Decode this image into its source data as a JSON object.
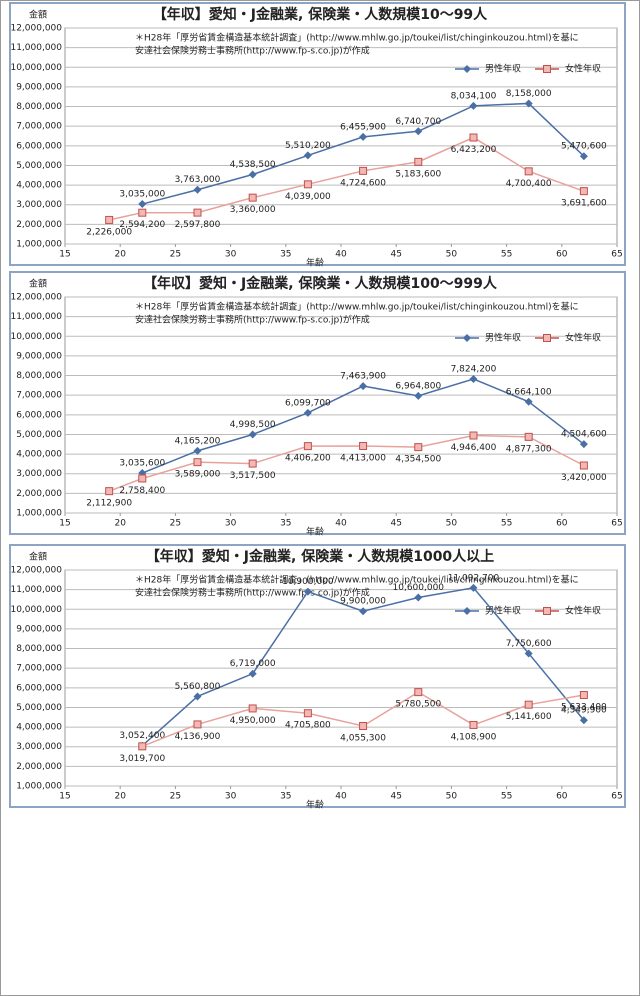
{
  "chart_data": [
    {
      "type": "line",
      "title": "【年収】愛知・J金融業, 保険業・人数規模10～99人",
      "y_label": "金額",
      "x_label": "年齢",
      "note": [
        "＊H28年「厚労省賃金構造基本統計調査」(http://www.mhlw.go.jp/toukei/list/chinginkouzou.html)を基に",
        "安達社会保険労務士事務所(http://www.fp-s.co.jp)が作成"
      ],
      "xlim": [
        15,
        65
      ],
      "xticks": [
        15,
        20,
        25,
        30,
        35,
        40,
        45,
        50,
        55,
        60,
        65
      ],
      "ylim": [
        1000000,
        12000000
      ],
      "yticks": [
        {
          "value": 1000000,
          "label": "1,000,000"
        },
        {
          "value": 2000000,
          "label": "2,000,000"
        },
        {
          "value": 3000000,
          "label": "3,000,000"
        },
        {
          "value": 4000000,
          "label": "4,000,000"
        },
        {
          "value": 5000000,
          "label": "5,000,000"
        },
        {
          "value": 6000000,
          "label": "6,000,000"
        },
        {
          "value": 7000000,
          "label": "7,000,000"
        },
        {
          "value": 8000000,
          "label": "8,000,000"
        },
        {
          "value": 9000000,
          "label": "9,000,000"
        },
        {
          "value": 10000000,
          "label": "10,000,000"
        },
        {
          "value": 11000000,
          "label": "11,000,000"
        },
        {
          "value": 12000000,
          "label": "12,000,000"
        }
      ],
      "grid": true,
      "legend": "upper right",
      "series": [
        {
          "name": "男性年収",
          "color": "#4a6fa5",
          "marker": "diamond",
          "x": [
            22,
            27,
            32,
            37,
            42,
            47,
            52,
            57,
            62
          ],
          "values": [
            3035000,
            3763000,
            4538500,
            5510200,
            6455900,
            6740700,
            8034100,
            8158000,
            5470600
          ],
          "value_labels": [
            "3,035,000",
            "3,763,000",
            "4,538,500",
            "5,510,200",
            "6,455,900",
            "6,740,700",
            "8,034,100",
            "8,158,000",
            "5,470,600"
          ]
        },
        {
          "name": "女性年収",
          "color": "#c0504d",
          "marker": "square",
          "x": [
            19,
            22,
            27,
            32,
            37,
            42,
            47,
            52,
            57,
            62
          ],
          "values": [
            2226000,
            2594200,
            2597800,
            3360000,
            4039000,
            4724600,
            5183600,
            6423200,
            4700400,
            3691600
          ],
          "value_labels": [
            "2,226,000",
            "2,594,200",
            "2,597,800",
            "3,360,000",
            "4,039,000",
            "4,724,600",
            "5,183,600",
            "6,423,200",
            "4,700,400",
            "3,691,600"
          ]
        }
      ]
    },
    {
      "type": "line",
      "title": "【年収】愛知・J金融業, 保険業・人数規模100～999人",
      "y_label": "金額",
      "x_label": "年齢",
      "note": [
        "＊H28年「厚労省賃金構造基本統計調査」(http://www.mhlw.go.jp/toukei/list/chinginkouzou.html)を基に",
        "安達社会保険労務士事務所(http://www.fp-s.co.jp)が作成"
      ],
      "xlim": [
        15,
        65
      ],
      "xticks": [
        15,
        20,
        25,
        30,
        35,
        40,
        45,
        50,
        55,
        60,
        65
      ],
      "ylim": [
        1000000,
        12000000
      ],
      "yticks": [
        {
          "value": 1000000,
          "label": "1,000,000"
        },
        {
          "value": 2000000,
          "label": "2,000,000"
        },
        {
          "value": 3000000,
          "label": "3,000,000"
        },
        {
          "value": 4000000,
          "label": "4,000,000"
        },
        {
          "value": 5000000,
          "label": "5,000,000"
        },
        {
          "value": 6000000,
          "label": "6,000,000"
        },
        {
          "value": 7000000,
          "label": "7,000,000"
        },
        {
          "value": 8000000,
          "label": "8,000,000"
        },
        {
          "value": 9000000,
          "label": "9,000,000"
        },
        {
          "value": 10000000,
          "label": "10,000,000"
        },
        {
          "value": 11000000,
          "label": "11,000,000"
        },
        {
          "value": 12000000,
          "label": "12,000,000"
        }
      ],
      "grid": true,
      "legend": "upper right",
      "series": [
        {
          "name": "男性年収",
          "color": "#4a6fa5",
          "marker": "diamond",
          "x": [
            22,
            27,
            32,
            37,
            42,
            47,
            52,
            57,
            62
          ],
          "values": [
            3035600,
            4165200,
            4998500,
            6099700,
            7463900,
            6964800,
            7824200,
            6664100,
            4504600
          ],
          "value_labels": [
            "3,035,600",
            "4,165,200",
            "4,998,500",
            "6,099,700",
            "7,463,900",
            "6,964,800",
            "7,824,200",
            "6,664,100",
            "4,504,600"
          ]
        },
        {
          "name": "女性年収",
          "color": "#c0504d",
          "marker": "square",
          "x": [
            19,
            22,
            27,
            32,
            37,
            42,
            47,
            52,
            57,
            62
          ],
          "values": [
            2112900,
            2758400,
            3589000,
            3517500,
            4406200,
            4413000,
            4354500,
            4946400,
            4877300,
            3420000
          ],
          "value_labels": [
            "2,112,900",
            "2,758,400",
            "3,589,000",
            "3,517,500",
            "4,406,200",
            "4,413,000",
            "4,354,500",
            "4,946,400",
            "4,877,300",
            "3,420,000"
          ]
        }
      ]
    },
    {
      "type": "line",
      "title": "【年収】愛知・J金融業, 保険業・人数規模1000人以上",
      "y_label": "金額",
      "x_label": "年齢",
      "note": [
        "＊H28年「厚労省賃金構造基本統計調査」(http://www.mhlw.go.jp/toukei/list/chinginkouzou.html)を基に",
        "安達社会保険労務士事務所(http://www.fp-s.co.jp)が作成"
      ],
      "xlim": [
        15,
        65
      ],
      "xticks": [
        15,
        20,
        25,
        30,
        35,
        40,
        45,
        50,
        55,
        60,
        65
      ],
      "ylim": [
        1000000,
        12000000
      ],
      "yticks": [
        {
          "value": 1000000,
          "label": "1,000,000"
        },
        {
          "value": 2000000,
          "label": "2,000,000"
        },
        {
          "value": 3000000,
          "label": "3,000,000"
        },
        {
          "value": 4000000,
          "label": "4,000,000"
        },
        {
          "value": 5000000,
          "label": "5,000,000"
        },
        {
          "value": 6000000,
          "label": "6,000,000"
        },
        {
          "value": 7000000,
          "label": "7,000,000"
        },
        {
          "value": 8000000,
          "label": "8,000,000"
        },
        {
          "value": 9000000,
          "label": "9,000,000"
        },
        {
          "value": 10000000,
          "label": "10,000,000"
        },
        {
          "value": 11000000,
          "label": "11,000,000"
        },
        {
          "value": 12000000,
          "label": "12,000,000"
        }
      ],
      "grid": true,
      "legend": "upper right",
      "series": [
        {
          "name": "男性年収",
          "color": "#4a6fa5",
          "marker": "diamond",
          "x": [
            22,
            27,
            32,
            37,
            42,
            47,
            52,
            57,
            62
          ],
          "values": [
            3052400,
            5560800,
            6719000,
            10900000,
            9900000,
            10600000,
            11092700,
            7750600,
            4349900
          ],
          "value_labels": [
            "3,052,400",
            "5,560,800",
            "6,719,000",
            "10,900,000",
            "9,900,000",
            "10,600,000",
            "11,092,700",
            "7,750,600",
            "4,349,900"
          ]
        },
        {
          "name": "女性年収",
          "color": "#c0504d",
          "marker": "square",
          "x": [
            22,
            27,
            32,
            37,
            42,
            47,
            52,
            57,
            62
          ],
          "values": [
            3019700,
            4136900,
            4950000,
            4705800,
            4055300,
            5780500,
            4108900,
            5141600,
            5633400
          ],
          "value_labels": [
            "3,019,700",
            "4,136,900",
            "4,950,000",
            "4,705,800",
            "4,055,300",
            "5,780,500",
            "4,108,900",
            "5,141,600",
            "5,633,400"
          ]
        }
      ]
    }
  ]
}
